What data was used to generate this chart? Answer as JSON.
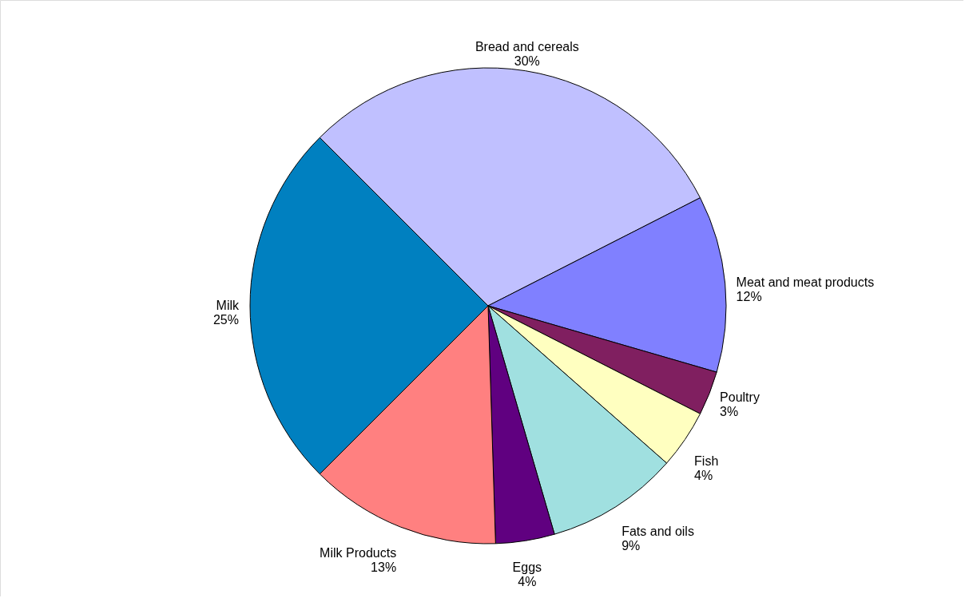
{
  "chart_data": {
    "type": "pie",
    "categories": [
      "Bread and cereals",
      "Meat and meat products",
      "Poultry",
      "Fish",
      "Fats and oils",
      "Eggs",
      "Milk Products",
      "Milk"
    ],
    "values": [
      30,
      12,
      3,
      4,
      9,
      4,
      13,
      25
    ],
    "value_labels": [
      "30%",
      "12%",
      "3%",
      "4%",
      "9%",
      "4%",
      "13%",
      "25%"
    ],
    "colors": [
      "#c0c0ff",
      "#8080ff",
      "#801f60",
      "#ffffc0",
      "#a0e0e0",
      "#600080",
      "#ff8080",
      "#0080c0"
    ]
  }
}
